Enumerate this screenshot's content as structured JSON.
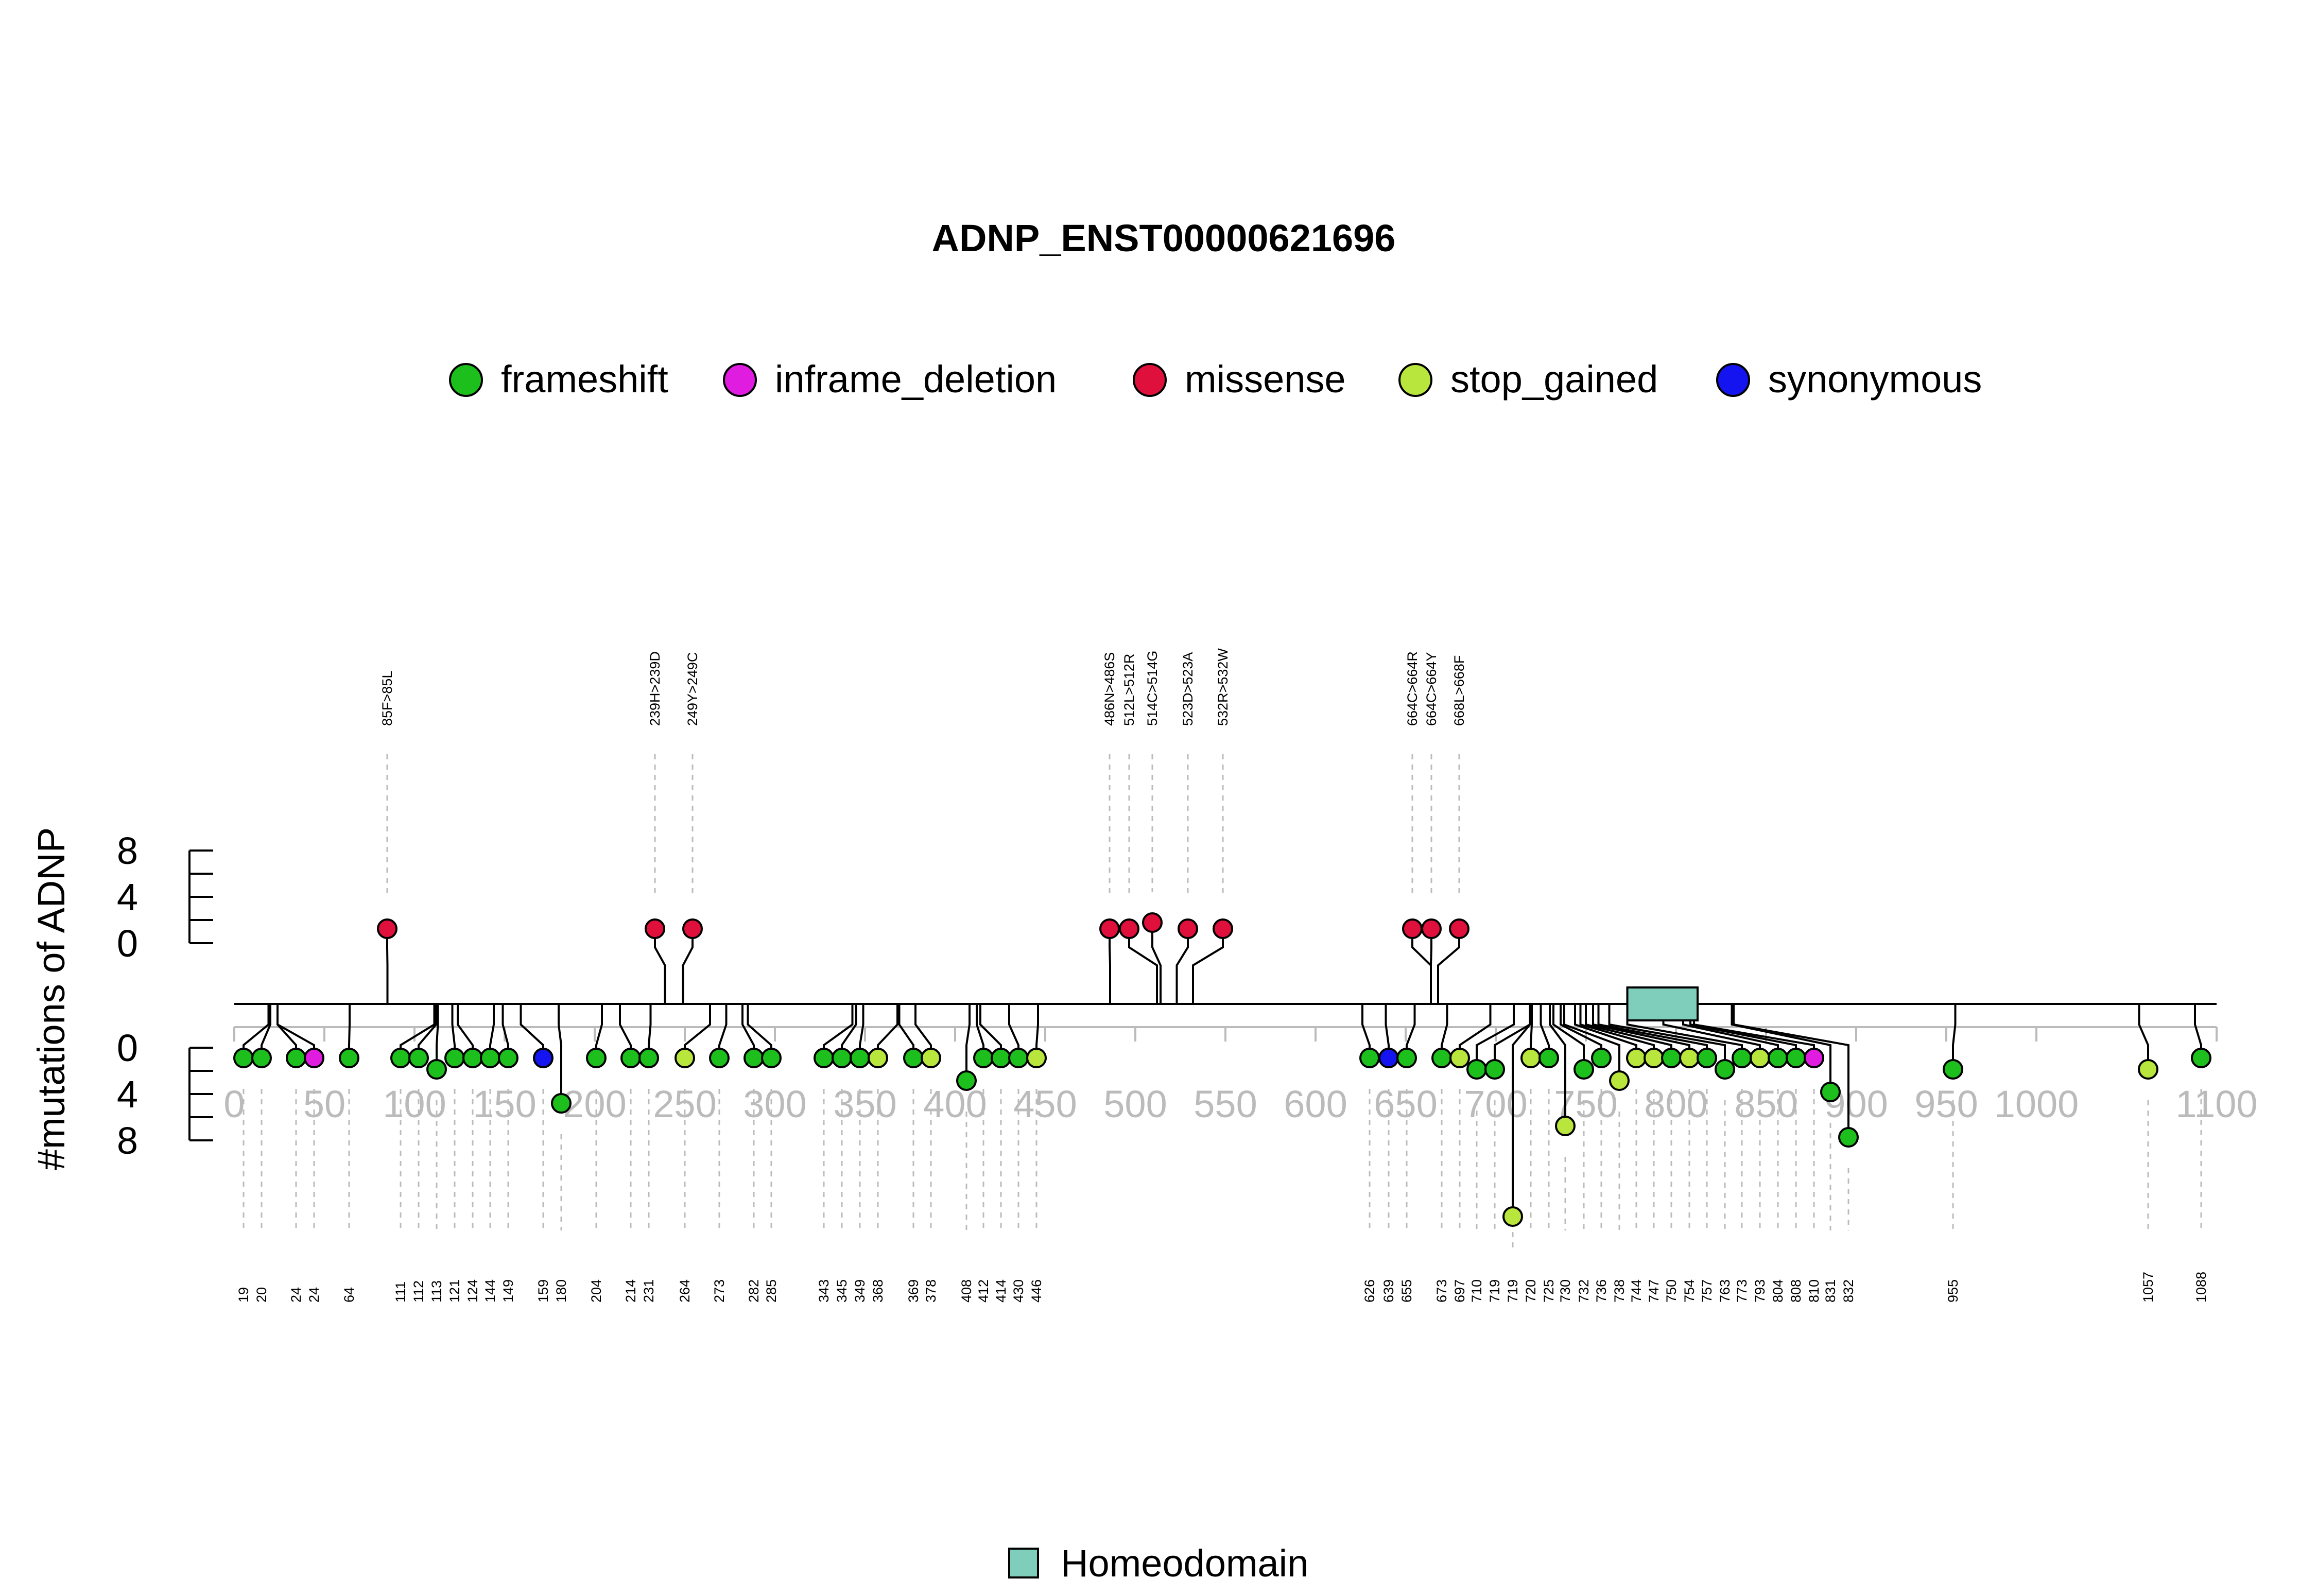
{
  "chart_data": {
    "type": "lollipop",
    "title": "ADNP_ENST00000621696",
    "ylabel": "#mutations of ADNP",
    "xlim": [
      0,
      1100
    ],
    "x_ticks": [
      "0",
      "50",
      "100",
      "150",
      "200",
      "250",
      "300",
      "350",
      "400",
      "450",
      "500",
      "550",
      "600",
      "650",
      "700",
      "750",
      "800",
      "850",
      "900",
      "950",
      "1000",
      "1100"
    ],
    "y_ticks_top": [
      "8",
      "4",
      "0"
    ],
    "y_ticks_bottom": [
      "0",
      "4",
      "8"
    ],
    "colors": {
      "frameshift": "#1cbf1c",
      "inframe_deletion": "#e01ce0",
      "missense": "#e0103c",
      "stop_gained": "#b8e63c",
      "synonymous": "#1414f0",
      "domain_fill": "#7fcdbb"
    },
    "legend": [
      {
        "key": "frameshift",
        "label": "frameshift"
      },
      {
        "key": "inframe_deletion",
        "label": "inframe_deletion"
      },
      {
        "key": "missense",
        "label": "missense"
      },
      {
        "key": "stop_gained",
        "label": "stop_gained"
      },
      {
        "key": "synonymous",
        "label": "synonymous"
      }
    ],
    "domains": [
      {
        "name": "Homeodomain",
        "start": 773,
        "end": 812
      }
    ],
    "upper": [
      {
        "pos": 85,
        "label": "85F>85L",
        "type": "missense",
        "count": 1
      },
      {
        "pos": 239,
        "label": "239H>239D",
        "type": "missense",
        "count": 1
      },
      {
        "pos": 249,
        "label": "249Y>249C",
        "type": "missense",
        "count": 1
      },
      {
        "pos": 486,
        "label": "486N>486S",
        "type": "missense",
        "count": 1
      },
      {
        "pos": 512,
        "label": "512L>512R",
        "type": "missense",
        "count": 1
      },
      {
        "pos": 514,
        "label": "514C>514G",
        "type": "missense",
        "count": 2
      },
      {
        "pos": 523,
        "label": "523D>523A",
        "type": "missense",
        "count": 1
      },
      {
        "pos": 532,
        "label": "532R>532W",
        "type": "missense",
        "count": 1
      },
      {
        "pos": 664,
        "label": "664C>664R",
        "type": "missense",
        "count": 1
      },
      {
        "pos": 664,
        "label": "664C>664Y",
        "type": "missense",
        "count": 1
      },
      {
        "pos": 668,
        "label": "668L>668F",
        "type": "missense",
        "count": 1
      }
    ],
    "lower": [
      {
        "pos": 19,
        "label": "19",
        "type": "frameshift",
        "count": 1
      },
      {
        "pos": 20,
        "label": "20",
        "type": "frameshift",
        "count": 1
      },
      {
        "pos": 24,
        "label": "24",
        "type": "frameshift",
        "count": 1
      },
      {
        "pos": 24,
        "label": "24",
        "type": "inframe_deletion",
        "count": 1
      },
      {
        "pos": 64,
        "label": "64",
        "type": "frameshift",
        "count": 1
      },
      {
        "pos": 111,
        "label": "111",
        "type": "frameshift",
        "count": 1
      },
      {
        "pos": 112,
        "label": "112",
        "type": "frameshift",
        "count": 1
      },
      {
        "pos": 113,
        "label": "113",
        "type": "frameshift",
        "count": 2
      },
      {
        "pos": 121,
        "label": "121",
        "type": "frameshift",
        "count": 1
      },
      {
        "pos": 124,
        "label": "124",
        "type": "frameshift",
        "count": 1
      },
      {
        "pos": 144,
        "label": "144",
        "type": "frameshift",
        "count": 1
      },
      {
        "pos": 149,
        "label": "149",
        "type": "frameshift",
        "count": 1
      },
      {
        "pos": 159,
        "label": "159",
        "type": "synonymous",
        "count": 1
      },
      {
        "pos": 180,
        "label": "180",
        "type": "frameshift",
        "count": 5
      },
      {
        "pos": 204,
        "label": "204",
        "type": "frameshift",
        "count": 1
      },
      {
        "pos": 214,
        "label": "214",
        "type": "frameshift",
        "count": 1
      },
      {
        "pos": 231,
        "label": "231",
        "type": "frameshift",
        "count": 1
      },
      {
        "pos": 264,
        "label": "264",
        "type": "stop_gained",
        "count": 1
      },
      {
        "pos": 273,
        "label": "273",
        "type": "frameshift",
        "count": 1
      },
      {
        "pos": 282,
        "label": "282",
        "type": "frameshift",
        "count": 1
      },
      {
        "pos": 285,
        "label": "285",
        "type": "frameshift",
        "count": 1
      },
      {
        "pos": 343,
        "label": "343",
        "type": "frameshift",
        "count": 1
      },
      {
        "pos": 345,
        "label": "345",
        "type": "frameshift",
        "count": 1
      },
      {
        "pos": 349,
        "label": "349",
        "type": "frameshift",
        "count": 1
      },
      {
        "pos": 368,
        "label": "368",
        "type": "stop_gained",
        "count": 1
      },
      {
        "pos": 369,
        "label": "369",
        "type": "frameshift",
        "count": 1
      },
      {
        "pos": 378,
        "label": "378",
        "type": "stop_gained",
        "count": 1
      },
      {
        "pos": 408,
        "label": "408",
        "type": "frameshift",
        "count": 3
      },
      {
        "pos": 412,
        "label": "412",
        "type": "frameshift",
        "count": 1
      },
      {
        "pos": 414,
        "label": "414",
        "type": "frameshift",
        "count": 1
      },
      {
        "pos": 430,
        "label": "430",
        "type": "frameshift",
        "count": 1
      },
      {
        "pos": 446,
        "label": "446",
        "type": "stop_gained",
        "count": 1
      },
      {
        "pos": 626,
        "label": "626",
        "type": "frameshift",
        "count": 1
      },
      {
        "pos": 639,
        "label": "639",
        "type": "synonymous",
        "count": 1
      },
      {
        "pos": 655,
        "label": "655",
        "type": "frameshift",
        "count": 1
      },
      {
        "pos": 673,
        "label": "673",
        "type": "frameshift",
        "count": 1
      },
      {
        "pos": 697,
        "label": "697",
        "type": "stop_gained",
        "count": 1
      },
      {
        "pos": 710,
        "label": "710",
        "type": "frameshift",
        "count": 2
      },
      {
        "pos": 719,
        "label": "719",
        "type": "frameshift",
        "count": 2
      },
      {
        "pos": 719,
        "label": "719",
        "type": "stop_gained",
        "count": 15
      },
      {
        "pos": 720,
        "label": "720",
        "type": "stop_gained",
        "count": 1
      },
      {
        "pos": 725,
        "label": "725",
        "type": "frameshift",
        "count": 1
      },
      {
        "pos": 730,
        "label": "730",
        "type": "stop_gained",
        "count": 7
      },
      {
        "pos": 732,
        "label": "732",
        "type": "frameshift",
        "count": 2
      },
      {
        "pos": 736,
        "label": "736",
        "type": "frameshift",
        "count": 1
      },
      {
        "pos": 738,
        "label": "738",
        "type": "stop_gained",
        "count": 3
      },
      {
        "pos": 744,
        "label": "744",
        "type": "stop_gained",
        "count": 1
      },
      {
        "pos": 747,
        "label": "747",
        "type": "stop_gained",
        "count": 1
      },
      {
        "pos": 750,
        "label": "750",
        "type": "frameshift",
        "count": 1
      },
      {
        "pos": 754,
        "label": "754",
        "type": "stop_gained",
        "count": 1
      },
      {
        "pos": 757,
        "label": "757",
        "type": "frameshift",
        "count": 1
      },
      {
        "pos": 763,
        "label": "763",
        "type": "frameshift",
        "count": 2
      },
      {
        "pos": 773,
        "label": "773",
        "type": "frameshift",
        "count": 1
      },
      {
        "pos": 793,
        "label": "793",
        "type": "stop_gained",
        "count": 1
      },
      {
        "pos": 804,
        "label": "804",
        "type": "frameshift",
        "count": 1
      },
      {
        "pos": 808,
        "label": "808",
        "type": "frameshift",
        "count": 1
      },
      {
        "pos": 810,
        "label": "810",
        "type": "inframe_deletion",
        "count": 1
      },
      {
        "pos": 831,
        "label": "831",
        "type": "frameshift",
        "count": 4
      },
      {
        "pos": 832,
        "label": "832",
        "type": "frameshift",
        "count": 8
      },
      {
        "pos": 955,
        "label": "955",
        "type": "frameshift",
        "count": 2
      },
      {
        "pos": 1057,
        "label": "1057",
        "type": "stop_gained",
        "count": 2
      },
      {
        "pos": 1088,
        "label": "1088",
        "type": "frameshift",
        "count": 1
      }
    ]
  }
}
